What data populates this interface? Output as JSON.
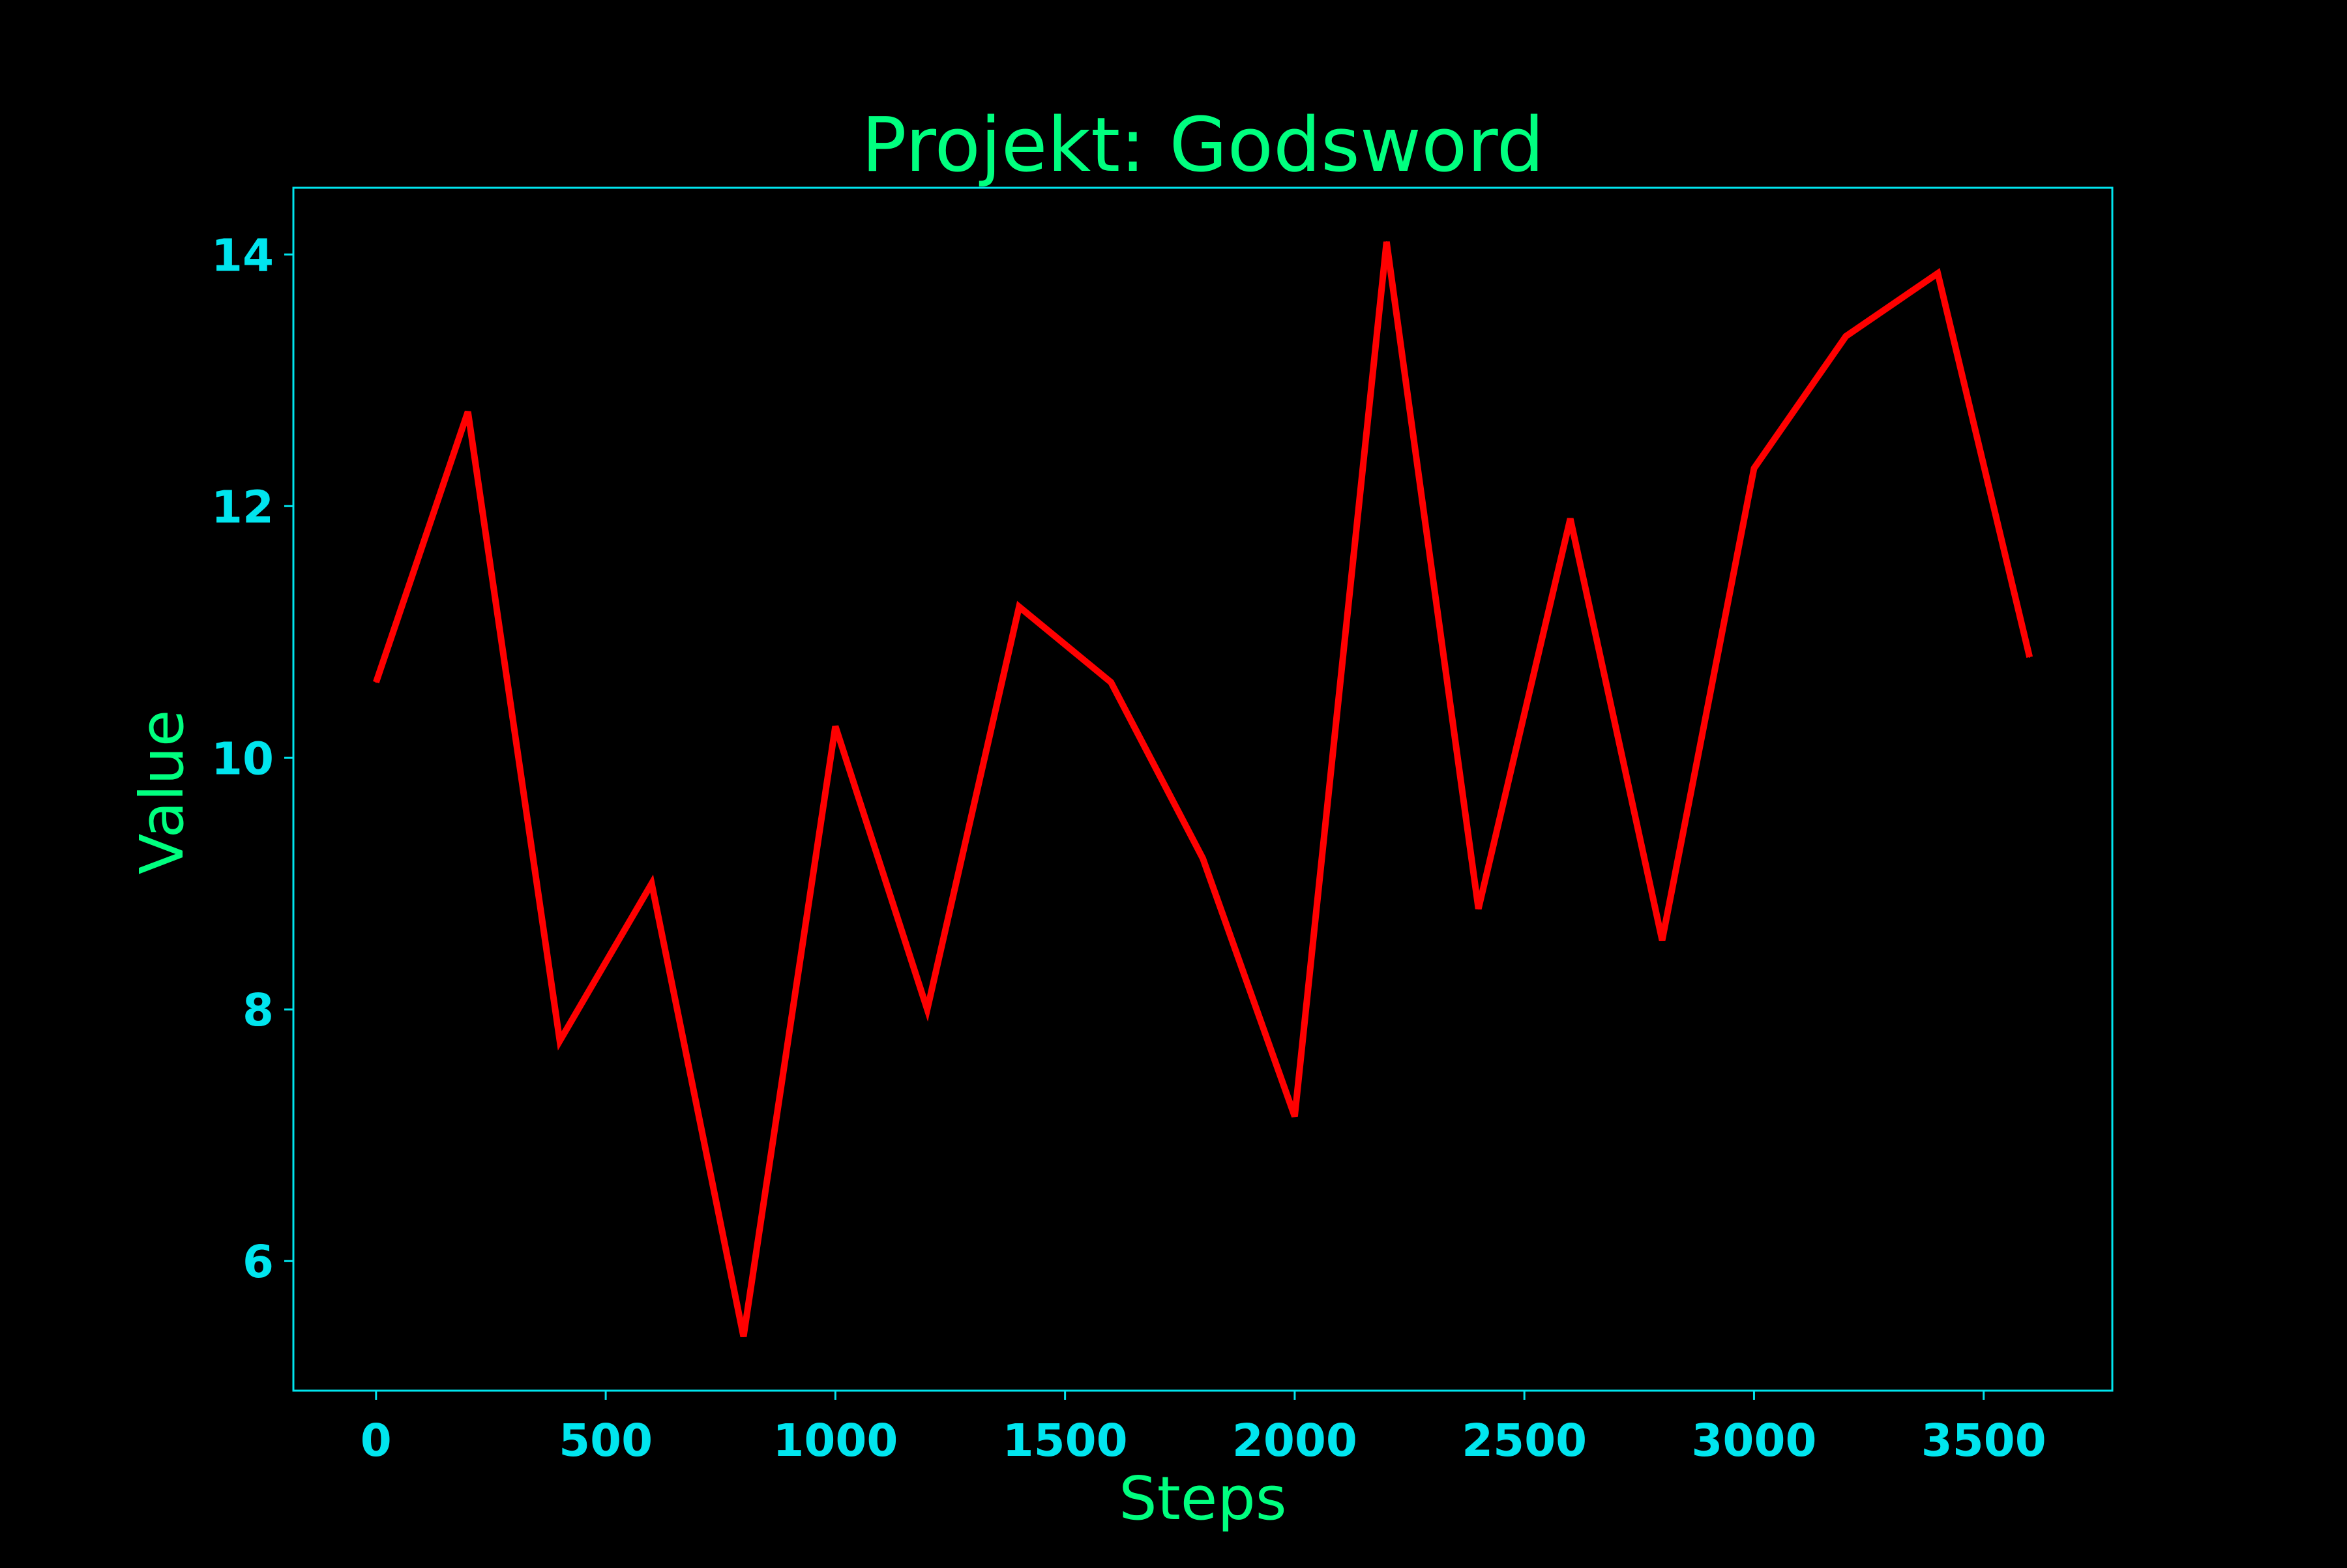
{
  "colors": {
    "background": "#000000",
    "line": "#ff0000",
    "frame": "#00e5ee",
    "tick_labels": "#00e5ee",
    "title_and_axis_labels": "#00ff7f"
  },
  "chart_data": {
    "type": "line",
    "title": "Projekt: Godsword",
    "xlabel": "Steps",
    "ylabel": "Value",
    "x": [
      0,
      200,
      400,
      600,
      800,
      1000,
      1200,
      1400,
      1600,
      1800,
      2000,
      2200,
      2400,
      2600,
      2800,
      3000,
      3200,
      3400,
      3600
    ],
    "series": [
      {
        "values": [
          10.6,
          12.75,
          7.75,
          9.0,
          5.4,
          10.25,
          8.0,
          11.2,
          10.6,
          9.2,
          7.15,
          14.1,
          8.8,
          11.9,
          8.55,
          12.3,
          13.35,
          13.85,
          10.8
        ]
      }
    ],
    "xlim": [
      -180,
      3780
    ],
    "ylim": [
      4.97,
      14.53
    ],
    "xticks": [
      0,
      500,
      1000,
      1500,
      2000,
      2500,
      3000,
      3500
    ],
    "yticks": [
      6,
      8,
      10,
      12,
      14
    ],
    "grid": false,
    "legend": "none"
  }
}
